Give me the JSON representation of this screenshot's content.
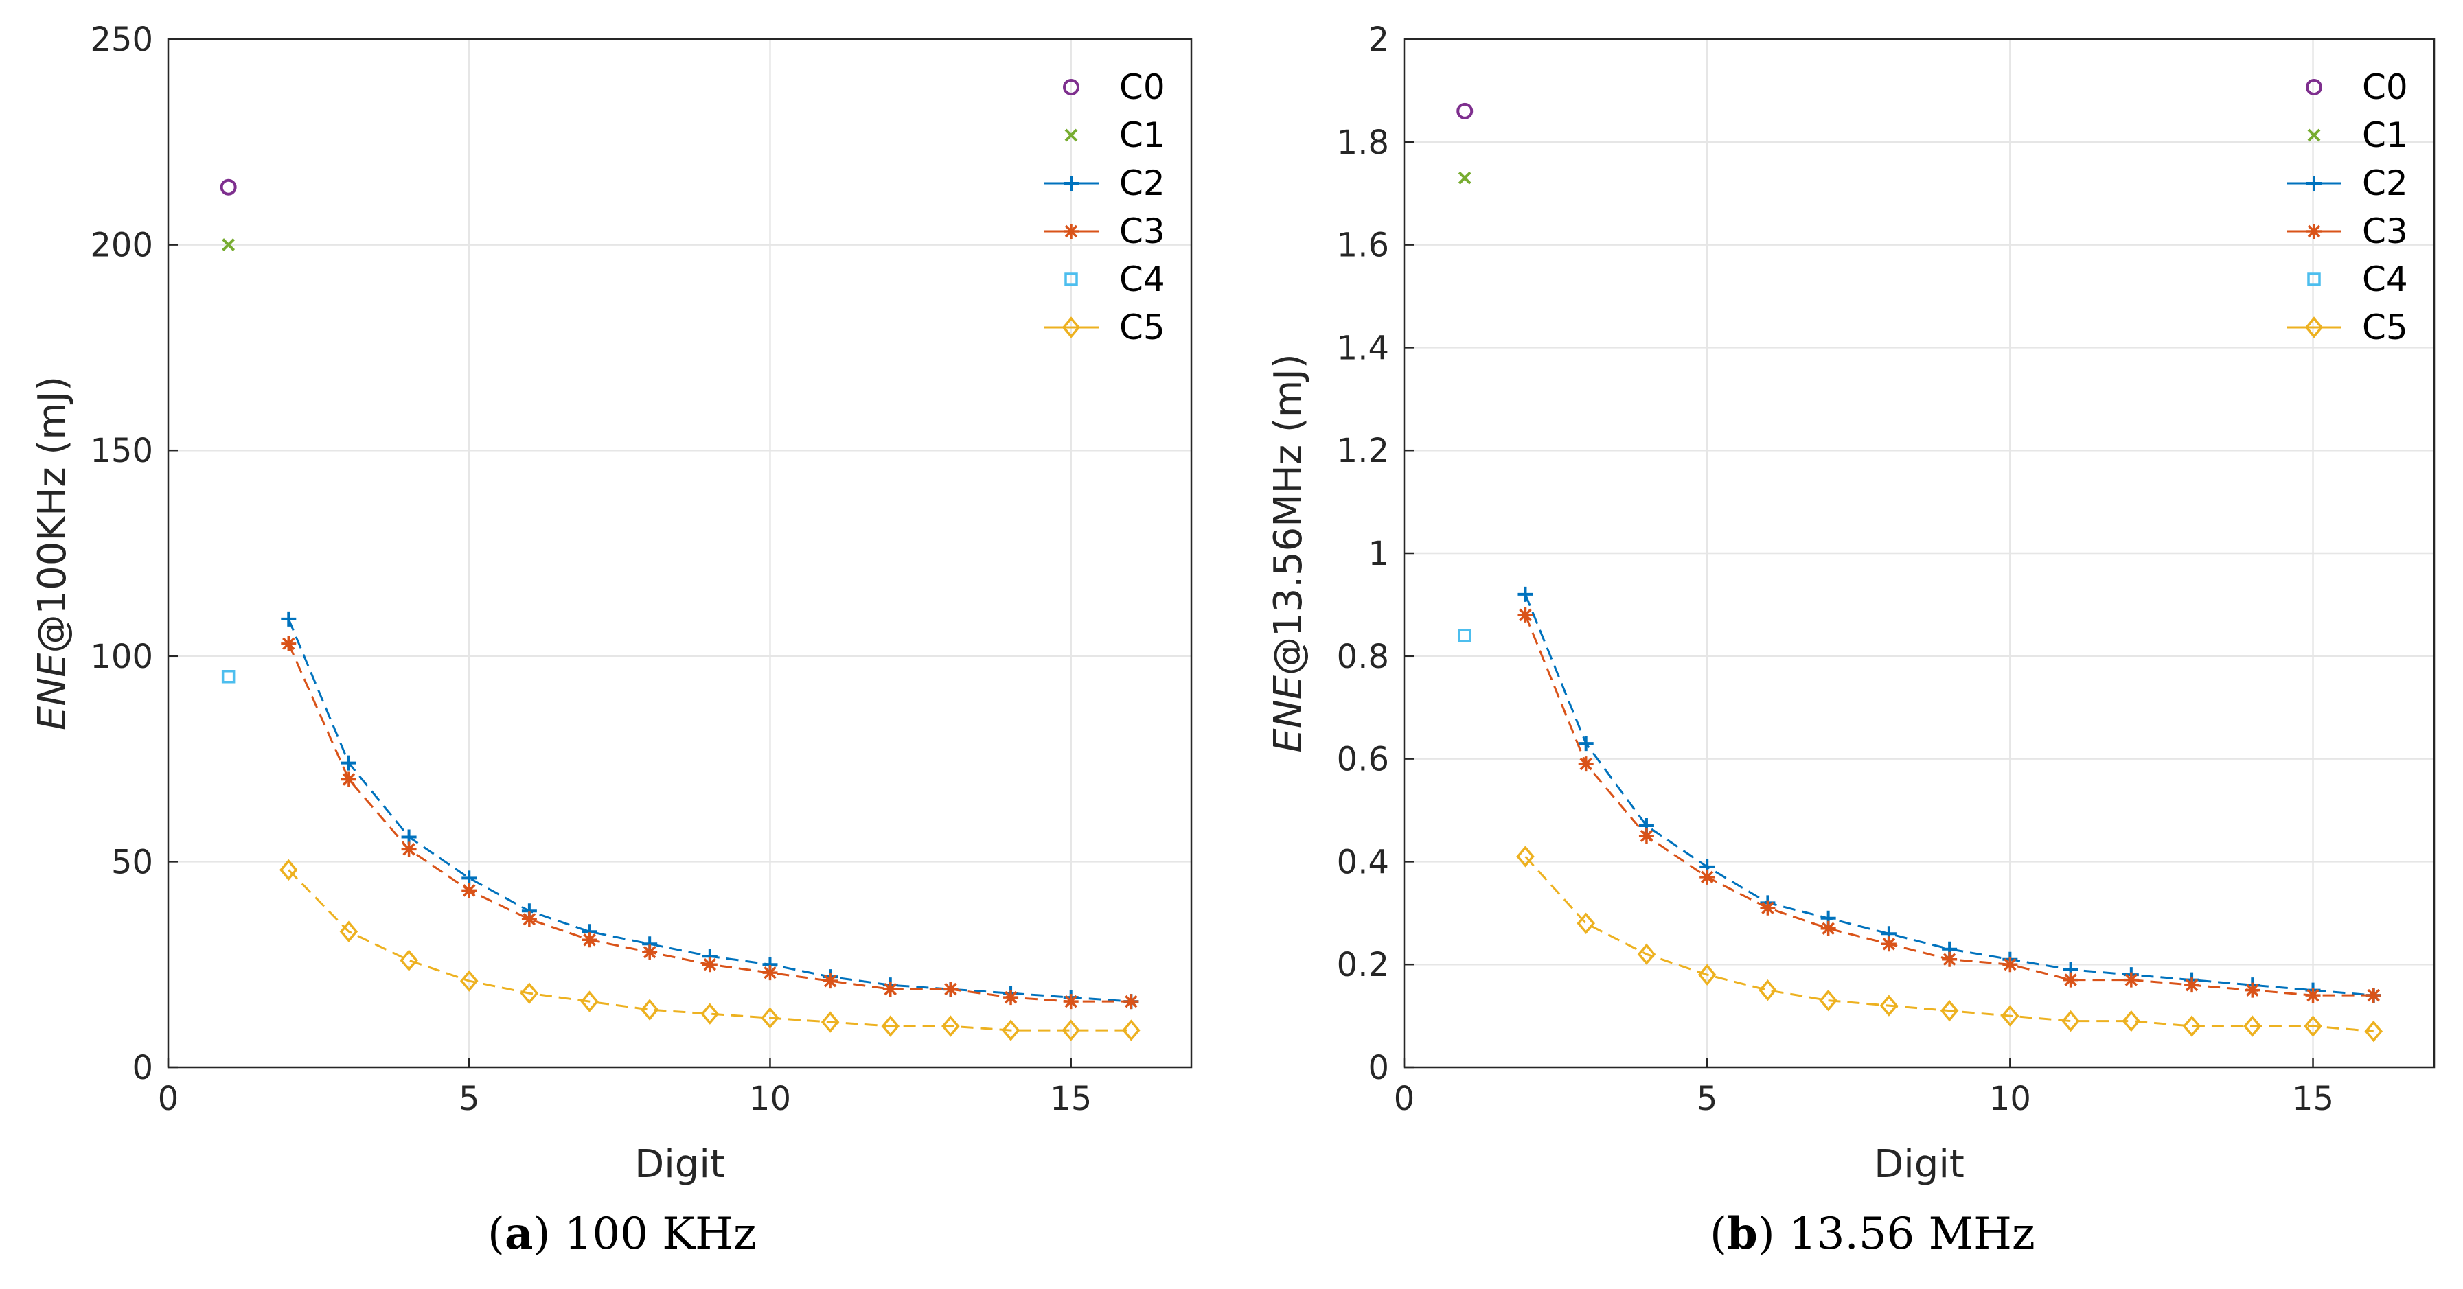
{
  "colors": {
    "C0": "#7E2F8E",
    "C1": "#77AC30",
    "C2": "#0072BD",
    "C3": "#D95319",
    "C4": "#4DBEEE",
    "C5": "#EDB120",
    "grid": "#e6e6e6",
    "axis": "#262626"
  },
  "captions": [
    {
      "letter": "a",
      "text": "100 KHz"
    },
    {
      "letter": "b",
      "text": "13.56 MHz"
    }
  ],
  "chart_data": [
    {
      "type": "line",
      "xlabel": "Digit",
      "ylabel_italic": "ENE",
      "ylabel_rest": "@100KHz (mJ)",
      "xlim": [
        0,
        17
      ],
      "ylim": [
        0,
        250
      ],
      "xticks": [
        0,
        5,
        10,
        15
      ],
      "yticks": [
        0,
        50,
        100,
        150,
        200,
        250
      ],
      "grid": true,
      "legend_position": "top-right",
      "series": [
        {
          "name": "C0",
          "marker": "circle",
          "line": false,
          "x": [
            1
          ],
          "y": [
            214
          ]
        },
        {
          "name": "C1",
          "marker": "x",
          "line": false,
          "x": [
            1
          ],
          "y": [
            200
          ]
        },
        {
          "name": "C2",
          "marker": "plus",
          "line": true,
          "x": [
            2,
            3,
            4,
            5,
            6,
            7,
            8,
            9,
            10,
            11,
            12,
            13,
            14,
            15,
            16
          ],
          "y": [
            109,
            74,
            56,
            46,
            38,
            33,
            30,
            27,
            25,
            22,
            20,
            19,
            18,
            17,
            16
          ]
        },
        {
          "name": "C3",
          "marker": "star",
          "line": true,
          "x": [
            2,
            3,
            4,
            5,
            6,
            7,
            8,
            9,
            10,
            11,
            12,
            13,
            14,
            15,
            16
          ],
          "y": [
            103,
            70,
            53,
            43,
            36,
            31,
            28,
            25,
            23,
            21,
            19,
            19,
            17,
            16,
            16
          ]
        },
        {
          "name": "C4",
          "marker": "square",
          "line": false,
          "x": [
            1
          ],
          "y": [
            95
          ]
        },
        {
          "name": "C5",
          "marker": "diamond",
          "line": true,
          "x": [
            2,
            3,
            4,
            5,
            6,
            7,
            8,
            9,
            10,
            11,
            12,
            13,
            14,
            15,
            16
          ],
          "y": [
            48,
            33,
            26,
            21,
            18,
            16,
            14,
            13,
            12,
            11,
            10,
            10,
            9,
            9,
            9
          ]
        }
      ]
    },
    {
      "type": "line",
      "xlabel": "Digit",
      "ylabel_italic": "ENE",
      "ylabel_rest": "@13.56MHz (mJ)",
      "xlim": [
        0,
        17
      ],
      "ylim": [
        0,
        2
      ],
      "xticks": [
        0,
        5,
        10,
        15
      ],
      "yticks": [
        0,
        0.2,
        0.4,
        0.6,
        0.8,
        1,
        1.2,
        1.4,
        1.6,
        1.8,
        2
      ],
      "grid": true,
      "legend_position": "top-right",
      "series": [
        {
          "name": "C0",
          "marker": "circle",
          "line": false,
          "x": [
            1
          ],
          "y": [
            1.86
          ]
        },
        {
          "name": "C1",
          "marker": "x",
          "line": false,
          "x": [
            1
          ],
          "y": [
            1.73
          ]
        },
        {
          "name": "C2",
          "marker": "plus",
          "line": true,
          "x": [
            2,
            3,
            4,
            5,
            6,
            7,
            8,
            9,
            10,
            11,
            12,
            13,
            14,
            15,
            16
          ],
          "y": [
            0.92,
            0.63,
            0.47,
            0.39,
            0.32,
            0.29,
            0.26,
            0.23,
            0.21,
            0.19,
            0.18,
            0.17,
            0.16,
            0.15,
            0.14
          ]
        },
        {
          "name": "C3",
          "marker": "star",
          "line": true,
          "x": [
            2,
            3,
            4,
            5,
            6,
            7,
            8,
            9,
            10,
            11,
            12,
            13,
            14,
            15,
            16
          ],
          "y": [
            0.88,
            0.59,
            0.45,
            0.37,
            0.31,
            0.27,
            0.24,
            0.21,
            0.2,
            0.17,
            0.17,
            0.16,
            0.15,
            0.14,
            0.14
          ]
        },
        {
          "name": "C4",
          "marker": "square",
          "line": false,
          "x": [
            1
          ],
          "y": [
            0.84
          ]
        },
        {
          "name": "C5",
          "marker": "diamond",
          "line": true,
          "x": [
            2,
            3,
            4,
            5,
            6,
            7,
            8,
            9,
            10,
            11,
            12,
            13,
            14,
            15,
            16
          ],
          "y": [
            0.41,
            0.28,
            0.22,
            0.18,
            0.15,
            0.13,
            0.12,
            0.11,
            0.1,
            0.09,
            0.09,
            0.08,
            0.08,
            0.08,
            0.07
          ]
        }
      ]
    }
  ]
}
